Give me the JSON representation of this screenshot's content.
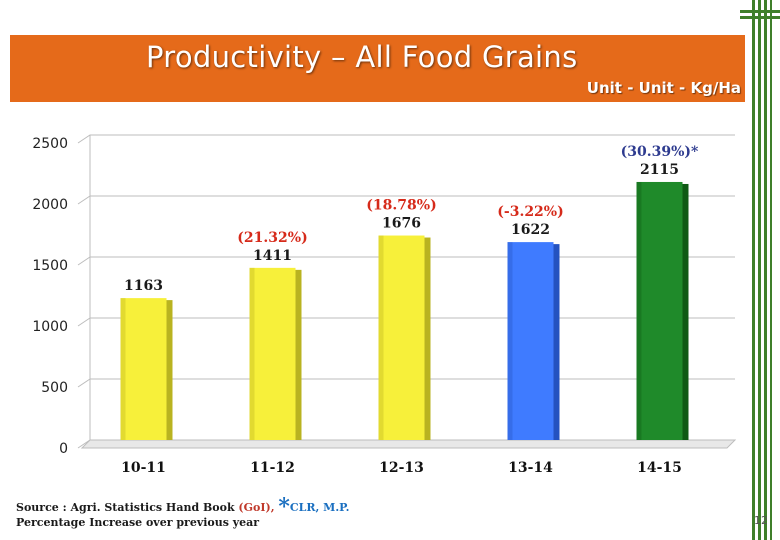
{
  "title": "Productivity – All Food Grains",
  "unit_label": "Unit - Unit - Kg/Ha",
  "footer": {
    "source_prefix": "Source : Agri. Statistics Hand Book ",
    "source_highlight": "(GoI),",
    "star": "*",
    "source_suffix": "CLR, M.P.",
    "note": "Percentage Increase over previous year"
  },
  "page_number": "12",
  "chart_data": {
    "type": "bar",
    "categories": [
      "10-11",
      "11-12",
      "12-13",
      "13-14",
      "14-15"
    ],
    "values": [
      1163,
      1411,
      1676,
      1622,
      2115
    ],
    "value_labels": [
      "1163",
      "1411",
      "1676",
      "1622",
      "2115"
    ],
    "percent_labels": [
      "",
      "(21.32%)",
      "(18.78%)",
      "(-3.22%)",
      "(30.39%)*"
    ],
    "percent_colors": [
      "#c0392b",
      "#d62a1a",
      "#d62a1a",
      "#d62a1a",
      "#2e3b8f"
    ],
    "bar_colors": [
      "#f7f03a",
      "#f7f03a",
      "#f7f03a",
      "#3f7bff",
      "#1f8a2a"
    ],
    "bar_side_colors": [
      "#b9b320",
      "#b9b320",
      "#b9b320",
      "#2452c0",
      "#0f5a14"
    ],
    "ylim": [
      0,
      2500
    ],
    "yticks": [
      0,
      500,
      1000,
      1500,
      2000,
      2500
    ],
    "grid": true,
    "title": "Productivity – All Food Grains",
    "xlabel": "",
    "ylabel": ""
  }
}
